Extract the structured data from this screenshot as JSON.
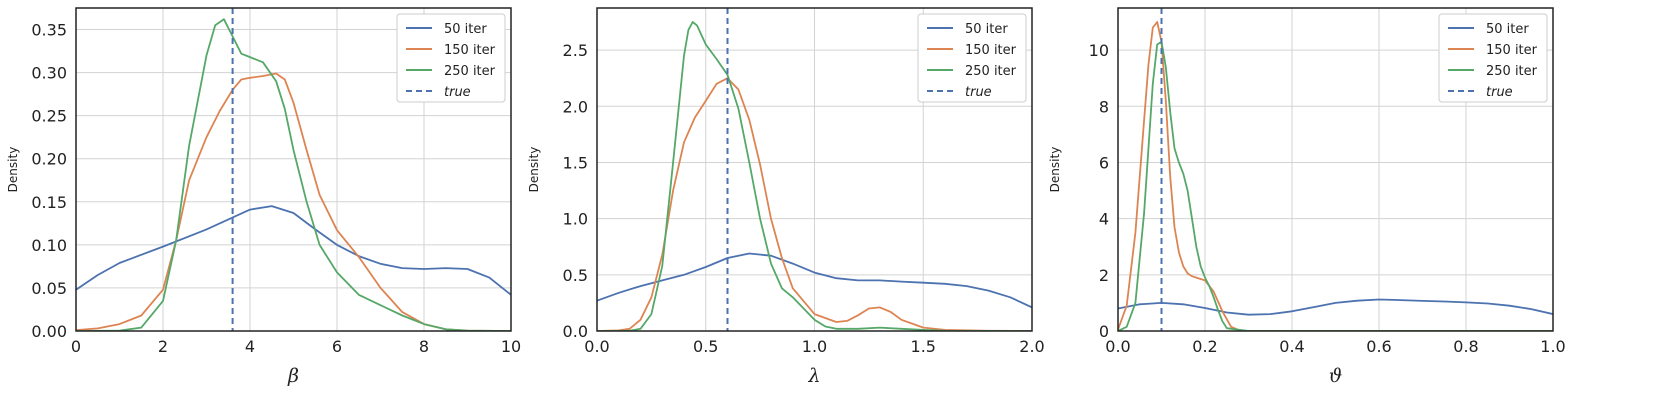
{
  "colors": {
    "iter50": "#4c72b0",
    "iter150": "#dd8452",
    "iter250": "#55a868",
    "true": "#4c72b0",
    "grid": "#d3d3d3",
    "frame": "#222222"
  },
  "legend": [
    "50 iter",
    "150 iter",
    "250 iter",
    "true"
  ],
  "chart_data": [
    {
      "type": "line",
      "xlabel": "β",
      "ylabel": "Density",
      "xlim": [
        0,
        10
      ],
      "ylim": [
        0,
        0.375
      ],
      "xticks": [
        "0",
        "2",
        "4",
        "6",
        "8",
        "10"
      ],
      "yticks": [
        "0.00",
        "0.05",
        "0.10",
        "0.15",
        "0.20",
        "0.25",
        "0.30",
        "0.35"
      ],
      "grid": true,
      "legend_position": "top-right",
      "true_value": 3.6,
      "series": [
        {
          "name": "50 iter",
          "x": [
            0,
            0.5,
            1,
            2,
            3,
            4,
            4.5,
            5,
            5.5,
            6,
            6.5,
            7,
            7.5,
            8,
            8.5,
            9,
            9.5,
            10
          ],
          "y": [
            0.048,
            0.065,
            0.079,
            0.098,
            0.118,
            0.141,
            0.145,
            0.137,
            0.118,
            0.1,
            0.087,
            0.078,
            0.073,
            0.072,
            0.073,
            0.072,
            0.062,
            0.042
          ]
        },
        {
          "name": "150 iter",
          "x": [
            0,
            0.5,
            1,
            1.5,
            2,
            2.3,
            2.6,
            3,
            3.3,
            3.6,
            3.8,
            4,
            4.3,
            4.6,
            4.8,
            5,
            5.3,
            5.6,
            6,
            6.5,
            7,
            7.5,
            8,
            8.5,
            9,
            10
          ],
          "y": [
            0.001,
            0.003,
            0.008,
            0.018,
            0.048,
            0.105,
            0.175,
            0.225,
            0.255,
            0.28,
            0.292,
            0.294,
            0.296,
            0.299,
            0.292,
            0.265,
            0.21,
            0.158,
            0.117,
            0.086,
            0.05,
            0.022,
            0.008,
            0.002,
            0.0005,
            0
          ]
        },
        {
          "name": "250 iter",
          "x": [
            0,
            1,
            1.5,
            2,
            2.3,
            2.6,
            3,
            3.2,
            3.4,
            3.6,
            3.8,
            4,
            4.3,
            4.6,
            4.8,
            5,
            5.3,
            5.6,
            6,
            6.5,
            7,
            7.5,
            8,
            8.5,
            9,
            10
          ],
          "y": [
            0,
            0.0005,
            0.004,
            0.035,
            0.105,
            0.215,
            0.32,
            0.355,
            0.362,
            0.342,
            0.322,
            0.318,
            0.312,
            0.29,
            0.258,
            0.21,
            0.15,
            0.1,
            0.068,
            0.042,
            0.03,
            0.018,
            0.008,
            0.002,
            0.0005,
            0
          ]
        }
      ]
    },
    {
      "type": "line",
      "xlabel": "λ",
      "ylabel": "Density",
      "xlim": [
        0,
        2
      ],
      "ylim": [
        0,
        2.875
      ],
      "xticks": [
        "0.0",
        "0.5",
        "1.0",
        "1.5",
        "2.0"
      ],
      "yticks": [
        "0.0",
        "0.5",
        "1.0",
        "1.5",
        "2.0",
        "2.5"
      ],
      "grid": true,
      "legend_position": "top-right",
      "true_value": 0.6,
      "series": [
        {
          "name": "50 iter",
          "x": [
            0,
            0.1,
            0.2,
            0.3,
            0.4,
            0.5,
            0.6,
            0.7,
            0.8,
            0.9,
            1,
            1.1,
            1.2,
            1.3,
            1.4,
            1.5,
            1.6,
            1.7,
            1.8,
            1.9,
            2
          ],
          "y": [
            0.27,
            0.34,
            0.4,
            0.45,
            0.5,
            0.57,
            0.65,
            0.69,
            0.67,
            0.6,
            0.52,
            0.47,
            0.45,
            0.45,
            0.44,
            0.43,
            0.42,
            0.4,
            0.36,
            0.3,
            0.21
          ]
        },
        {
          "name": "150 iter",
          "x": [
            0,
            0.1,
            0.15,
            0.2,
            0.25,
            0.3,
            0.35,
            0.4,
            0.45,
            0.5,
            0.55,
            0.6,
            0.65,
            0.7,
            0.75,
            0.8,
            0.85,
            0.9,
            1,
            1.1,
            1.15,
            1.2,
            1.25,
            1.3,
            1.35,
            1.4,
            1.5,
            1.6,
            1.8,
            2
          ],
          "y": [
            0,
            0.005,
            0.02,
            0.1,
            0.3,
            0.68,
            1.25,
            1.68,
            1.9,
            2.05,
            2.2,
            2.25,
            2.15,
            1.88,
            1.48,
            1.0,
            0.65,
            0.38,
            0.15,
            0.08,
            0.09,
            0.14,
            0.2,
            0.21,
            0.17,
            0.1,
            0.03,
            0.01,
            0.002,
            0
          ]
        },
        {
          "name": "250 iter",
          "x": [
            0,
            0.15,
            0.2,
            0.25,
            0.3,
            0.35,
            0.4,
            0.42,
            0.44,
            0.46,
            0.5,
            0.55,
            0.6,
            0.65,
            0.7,
            0.75,
            0.8,
            0.85,
            0.9,
            0.95,
            1,
            1.05,
            1.1,
            1.2,
            1.3,
            1.4,
            1.5,
            1.6,
            2
          ],
          "y": [
            0,
            0.002,
            0.02,
            0.15,
            0.58,
            1.5,
            2.45,
            2.68,
            2.75,
            2.72,
            2.55,
            2.42,
            2.28,
            1.98,
            1.5,
            1.0,
            0.6,
            0.38,
            0.3,
            0.2,
            0.1,
            0.04,
            0.02,
            0.02,
            0.03,
            0.02,
            0.01,
            0.002,
            0
          ]
        }
      ]
    },
    {
      "type": "line",
      "xlabel": "ϑ",
      "ylabel": "Density",
      "xlim": [
        0,
        1
      ],
      "ylim": [
        0,
        11.5
      ],
      "xticks": [
        "0.0",
        "0.2",
        "0.4",
        "0.6",
        "0.8",
        "1.0"
      ],
      "yticks": [
        "0",
        "2",
        "4",
        "6",
        "8",
        "10"
      ],
      "grid": true,
      "legend_position": "top-right",
      "true_value": 0.1,
      "series": [
        {
          "name": "50 iter",
          "x": [
            0,
            0.05,
            0.1,
            0.15,
            0.2,
            0.25,
            0.3,
            0.35,
            0.4,
            0.45,
            0.5,
            0.55,
            0.6,
            0.65,
            0.7,
            0.75,
            0.8,
            0.85,
            0.9,
            0.95,
            1
          ],
          "y": [
            0.8,
            0.95,
            1.0,
            0.95,
            0.82,
            0.66,
            0.58,
            0.6,
            0.7,
            0.85,
            1.0,
            1.08,
            1.12,
            1.1,
            1.07,
            1.05,
            1.02,
            0.98,
            0.9,
            0.78,
            0.6
          ]
        },
        {
          "name": "150 iter",
          "x": [
            0,
            0.02,
            0.04,
            0.06,
            0.07,
            0.08,
            0.09,
            0.1,
            0.11,
            0.12,
            0.13,
            0.14,
            0.15,
            0.16,
            0.17,
            0.18,
            0.2,
            0.22,
            0.24,
            0.26,
            0.28,
            0.3,
            0.35,
            1
          ],
          "y": [
            0.05,
            0.9,
            3.5,
            7.5,
            9.5,
            10.8,
            11.0,
            10.3,
            8.2,
            5.5,
            3.7,
            2.8,
            2.3,
            2.05,
            1.95,
            1.9,
            1.8,
            1.4,
            0.7,
            0.15,
            0.02,
            0,
            0,
            0
          ]
        },
        {
          "name": "250 iter",
          "x": [
            0,
            0.02,
            0.04,
            0.06,
            0.08,
            0.09,
            0.1,
            0.11,
            0.12,
            0.13,
            0.14,
            0.15,
            0.16,
            0.17,
            0.18,
            0.19,
            0.2,
            0.21,
            0.22,
            0.23,
            0.24,
            0.25,
            0.3,
            1
          ],
          "y": [
            0,
            0.15,
            1.0,
            4.2,
            8.8,
            10.2,
            10.3,
            9.4,
            7.8,
            6.5,
            6.0,
            5.6,
            5.0,
            4.0,
            3.0,
            2.3,
            1.9,
            1.6,
            1.2,
            0.75,
            0.35,
            0.1,
            0,
            0
          ]
        }
      ]
    }
  ]
}
